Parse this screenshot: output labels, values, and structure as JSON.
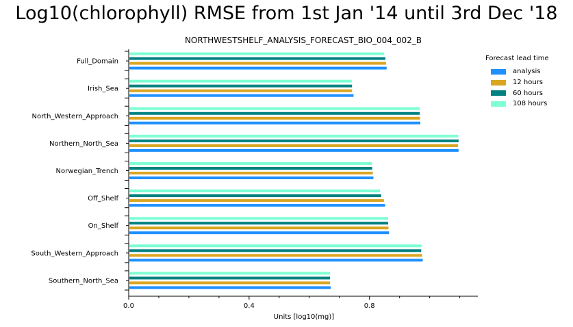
{
  "chart_data": {
    "type": "bar",
    "orientation": "horizontal",
    "title": "Log10(chlorophyll) RMSE from 1st Jan '14 until 3rd Dec '18",
    "subtitle": "NORTHWESTSHELF_ANALYSIS_FORECAST_BIO_004_002_B",
    "xlabel": "Units [log10(mg)]",
    "ylabel": "",
    "xlim": [
      0.0,
      1.16
    ],
    "xticks": [
      0.0,
      0.4,
      0.8
    ],
    "xtick_labels": [
      "0.0",
      "0.4",
      "0.8"
    ],
    "categories": [
      "Full_Domain",
      "Irish_Sea",
      "North_Western_Approach",
      "Northern_North_Sea",
      "Norwegian_Trench",
      "Off_Shelf",
      "On_Shelf",
      "South_Western_Approach",
      "Southern_North_Sea"
    ],
    "series": [
      {
        "name": "analysis",
        "color": "#1e90ff",
        "values": [
          0.857,
          0.747,
          0.969,
          1.096,
          0.813,
          0.852,
          0.865,
          0.977,
          0.671
        ]
      },
      {
        "name": "12 hours",
        "color": "#daa520",
        "values": [
          0.855,
          0.742,
          0.968,
          1.094,
          0.811,
          0.848,
          0.863,
          0.975,
          0.669
        ]
      },
      {
        "name": "60 hours",
        "color": "#008080",
        "values": [
          0.853,
          0.742,
          0.967,
          1.096,
          0.809,
          0.839,
          0.862,
          0.972,
          0.669
        ]
      },
      {
        "name": "108 hours",
        "color": "#7fffd4",
        "values": [
          0.849,
          0.741,
          0.967,
          1.095,
          0.808,
          0.835,
          0.862,
          0.973,
          0.669
        ]
      }
    ],
    "legend": {
      "title": "Forecast lead time",
      "placement": "top-right"
    },
    "grid": false
  }
}
